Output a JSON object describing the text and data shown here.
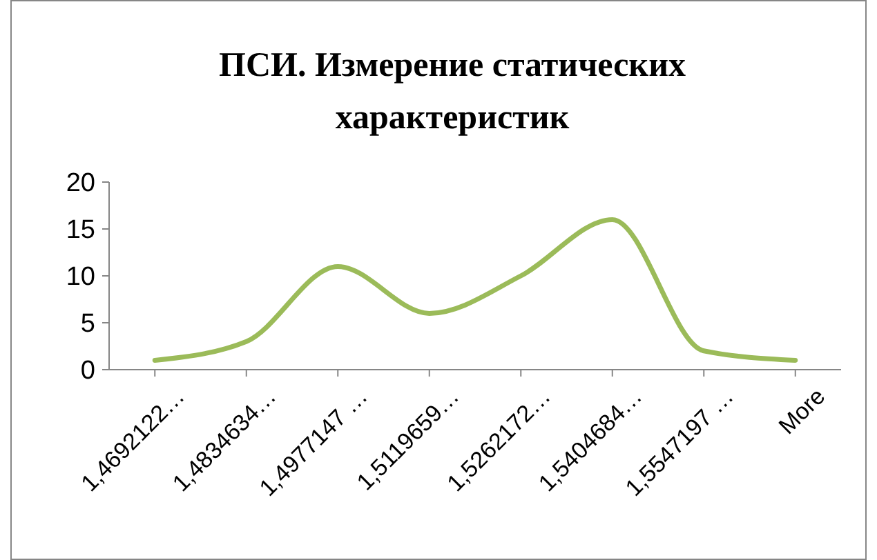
{
  "chart_data": {
    "type": "line",
    "title": "ПСИ. Измерение статических характеристик",
    "categories": [
      "1,4692122…",
      "1,4834634…",
      "1,4977147 …",
      "1,5119659…",
      "1,5262172…",
      "1,5404684…",
      "1,5547197 …",
      "More"
    ],
    "series": [
      {
        "color": "#9bbb59",
        "values": [
          1,
          3,
          11,
          6,
          10,
          16,
          2,
          1
        ]
      }
    ],
    "ylim": [
      0,
      20
    ],
    "yticks": [
      0,
      5,
      10,
      15,
      20
    ],
    "grid": false,
    "marker": "none",
    "line_style": "solid"
  }
}
